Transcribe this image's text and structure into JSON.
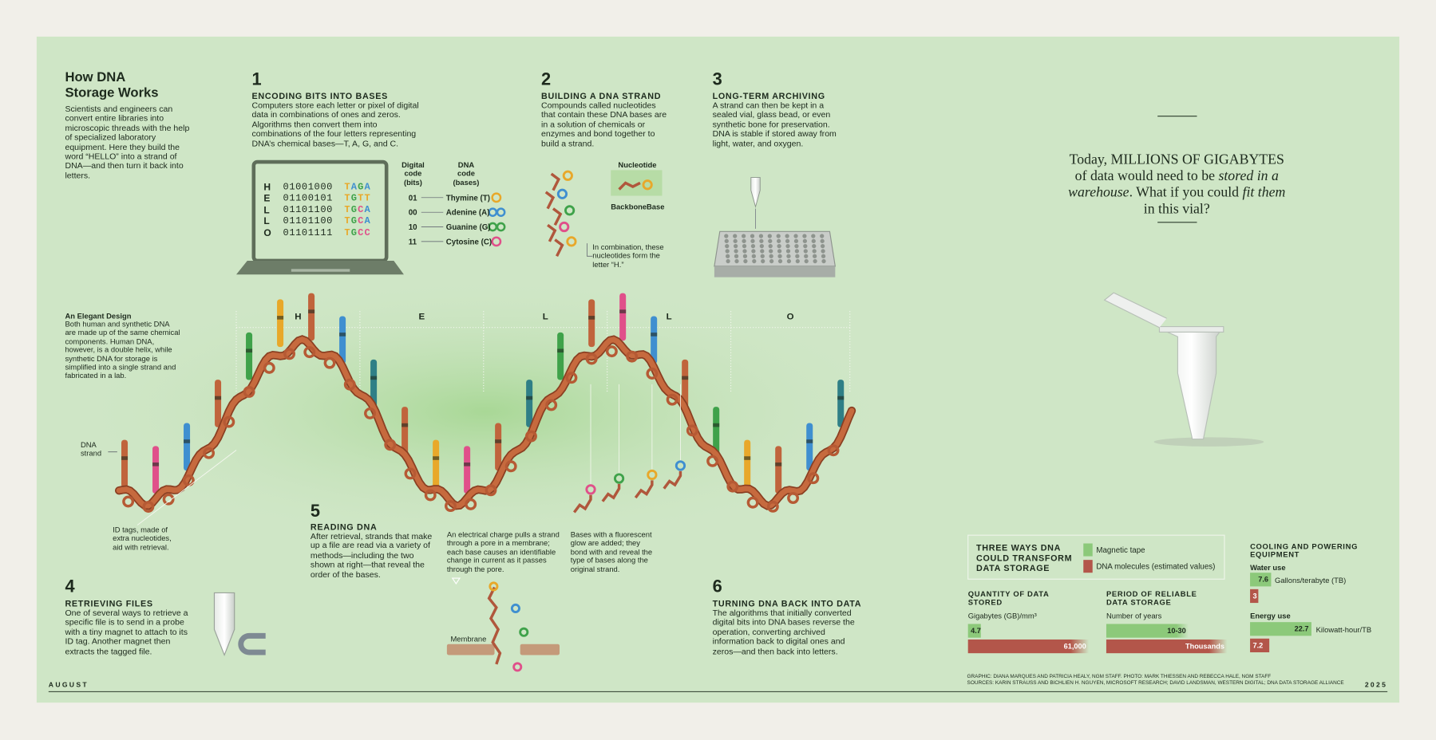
{
  "header": {
    "title": "How DNA Storage Works",
    "intro": "Scientists and engineers can convert entire libraries into microscopic threads with the help of specialized laboratory equipment. Here they build the word “HELLO” into a strand of DNA—and then turn it back into letters."
  },
  "steps": [
    {
      "number": "1",
      "heading": "ENCODING BITS INTO BASES",
      "text": "Computers store each letter or pixel of digital data in combinations of ones and zeros. Algorithms then convert them into combinations of the four letters representing DNA’s chemical bases—T, A, G, and C."
    },
    {
      "number": "2",
      "heading": "BUILDING A DNA STRAND",
      "text": "Compounds called nucleotides that contain these DNA bases are in a solution of chemicals or enzymes and bond together to build a strand."
    },
    {
      "number": "3",
      "heading": "LONG-TERM ARCHIVING",
      "text": "A strand can then be kept in a sealed vial, glass bead, or even synthetic bone for preservation. DNA is stable if stored away from light, water, and oxygen."
    },
    {
      "number": "4",
      "heading": "RETRIEVING FILES",
      "text": "One of several ways to retrieve a specific file is to send in a probe with a tiny magnet to attach to its ID tag. Another magnet then extracts the tagged file."
    },
    {
      "number": "5",
      "heading": "READING DNA",
      "text": "After retrieval, strands that make up a file are read via a variety of methods—including the two shown at right—that reveal the order of the bases."
    },
    {
      "number": "6",
      "heading": "TURNING DNA BACK INTO DATA",
      "text": "The algorithms that initially converted digital bits into DNA bases reverse the operation, converting archived information back to digital ones and zeros—and then back into letters."
    }
  ],
  "laptop": [
    {
      "letter": "H",
      "bits": "01001000",
      "bases": "TAGA"
    },
    {
      "letter": "E",
      "bits": "01100101",
      "bases": "TGTT"
    },
    {
      "letter": "L",
      "bits": "01101100",
      "bases": "TGCA"
    },
    {
      "letter": "L",
      "bits": "01101100",
      "bases": "TGCA"
    },
    {
      "letter": "O",
      "bits": "01101111",
      "bases": "TGCC"
    }
  ],
  "code_table": {
    "bits_header": "Digital code (bits)",
    "bases_header": "DNA code (bases)",
    "rows": [
      {
        "bits": "01",
        "name": "Thymine (T)",
        "color": "#e8a82a"
      },
      {
        "bits": "00",
        "name": "Adenine (A)",
        "color": "#3f8fd0"
      },
      {
        "bits": "10",
        "name": "Guanine (G)",
        "color": "#3fa24a"
      },
      {
        "bits": "11",
        "name": "Cytosine (C)",
        "color": "#e0508a"
      }
    ]
  },
  "nucleotide": {
    "label": "Nucleotide",
    "backbone": "Backbone",
    "base": "Base",
    "caption": "In combination, these nucleotides form the letter “H.”"
  },
  "quote": [
    {
      "text": "Today, MILLIONS OF GIGABYTES of data would need to be ",
      "italic": false
    },
    {
      "text": "stored in a warehouse",
      "italic": true
    },
    {
      "text": ". What if you could ",
      "italic": false
    },
    {
      "text": "fit them",
      "italic": true
    },
    {
      "text": " in this vial?",
      "italic": false
    }
  ],
  "design": {
    "title": "An Elegant Design",
    "text": "Both human and synthetic DNA are made up of the same chemical components. Human DNA, however, is a double helix, while synthetic DNA for storage is simplified into a single strand and fabricated in a lab.",
    "strand_label": "DNA strand",
    "id_tags": "ID tags, made of extra nucleotides, aid with retrieval.",
    "letters": [
      "H",
      "E",
      "L",
      "L",
      "O"
    ]
  },
  "reading": {
    "pore": "An electrical charge pulls a strand through a pore in a membrane; each base causes an identifiable change in current as it passes through the pore.",
    "fluorescent": "Bases with a fluorescent glow are added; they bond with and reveal the type of bases along the original strand.",
    "membrane": "Membrane"
  },
  "comparison": {
    "title": "THREE WAYS DNA COULD TRANSFORM DATA STORAGE",
    "legend": [
      {
        "name": "Magnetic tape",
        "color": "#8cc97a"
      },
      {
        "name": "DNA molecules (estimated values)",
        "color": "#b3564a"
      }
    ],
    "quantity": {
      "title": "QUANTITY OF DATA STORED",
      "unit": "Gigabytes (GB)/mm³",
      "tape": "4.7",
      "dna": "61,000"
    },
    "period": {
      "title": "PERIOD OF RELIABLE DATA STORAGE",
      "unit": "Number of years",
      "tape": "10-30",
      "dna": "Thousands"
    },
    "cooling": {
      "title": "COOLING AND POWERING EQUIPMENT",
      "water": {
        "label": "Water use",
        "tape": "7.6",
        "unit": "Gallons/terabyte (TB)",
        "dna": "3"
      },
      "energy": {
        "label": "Energy use",
        "tape": "22.7",
        "unit": "Kilowatt-hour/TB",
        "dna": "7.2"
      }
    }
  },
  "footer": {
    "month": "AUGUST",
    "year": "2025",
    "credits": [
      "GRAPHIC: DIANA MARQUES AND PATRICIA HEALY, NGM STAFF. PHOTO: MARK THIESSEN AND REBECCA HALE, NGM STAFF",
      "SOURCES: KARIN STRAUSS AND BICHLIEN H. NGUYEN, MICROSOFT RESEARCH; DAVID LANDSMAN, WESTERN DIGITAL; DNA DATA STORAGE ALLIANCE"
    ]
  }
}
